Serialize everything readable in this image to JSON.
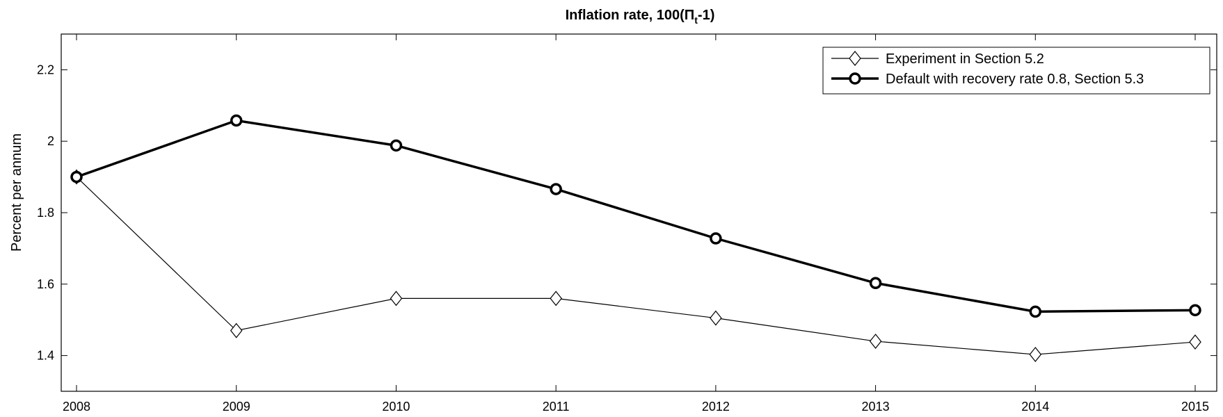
{
  "chart_data": {
    "type": "line",
    "title": "Inflation rate, 100(Π",
    "title_subscript": "t",
    "title_suffix": "-1)",
    "xlabel": "",
    "ylabel": "Percent per annum",
    "x": [
      2008,
      2009,
      2010,
      2011,
      2012,
      2013,
      2014,
      2015
    ],
    "xlim": [
      2008,
      2015
    ],
    "ylim": [
      1.3,
      2.3
    ],
    "yticks": [
      1.4,
      1.6,
      1.8,
      2.0,
      2.2
    ],
    "ytick_labels": [
      "1.4",
      "1.6",
      "1.8",
      "2",
      "2.2"
    ],
    "xtick_labels": [
      "2008",
      "2009",
      "2010",
      "2011",
      "2012",
      "2013",
      "2014",
      "2015"
    ],
    "grid": false,
    "legend_position": "top-right",
    "series": [
      {
        "name": "Experiment in Section 5.2",
        "marker": "diamond",
        "line_style": "thin",
        "color": "#000000",
        "values": [
          1.9,
          1.47,
          1.56,
          1.56,
          1.505,
          1.44,
          1.403,
          1.438
        ]
      },
      {
        "name": "Default with recovery rate 0.8, Section 5.3",
        "marker": "circle",
        "line_style": "thick",
        "color": "#000000",
        "values": [
          1.9,
          2.058,
          1.988,
          1.866,
          1.728,
          1.603,
          1.523,
          1.527
        ]
      }
    ]
  }
}
